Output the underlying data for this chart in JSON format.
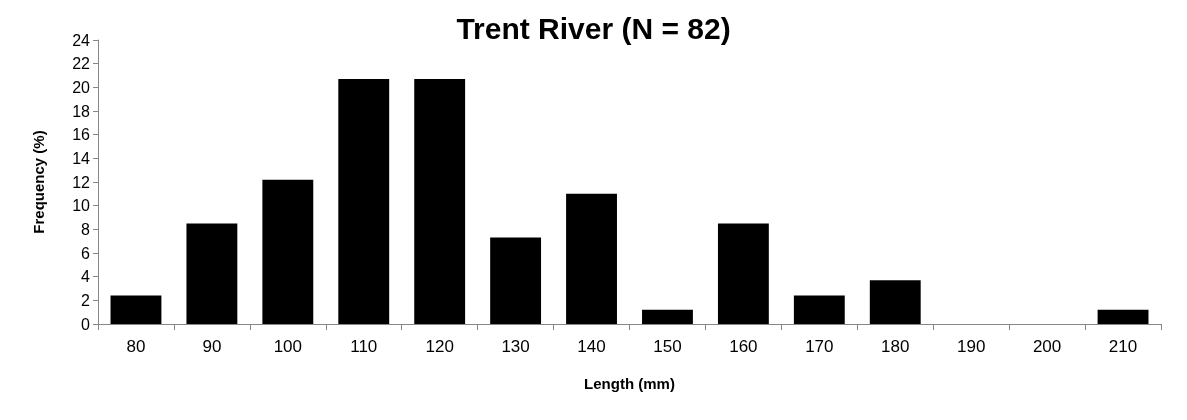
{
  "chart_data": {
    "type": "bar",
    "title": "Trent River (N = 82)",
    "xlabel": "Length (mm)",
    "ylabel": "Frequency (%)",
    "categories": [
      "80",
      "90",
      "100",
      "110",
      "120",
      "130",
      "140",
      "150",
      "160",
      "170",
      "180",
      "190",
      "200",
      "210"
    ],
    "values": [
      2.4,
      8.5,
      12.2,
      20.7,
      20.7,
      7.3,
      11.0,
      1.2,
      8.5,
      2.4,
      3.7,
      0,
      0,
      1.2
    ],
    "color": "#000000",
    "ylim": [
      0,
      24
    ],
    "yticks": [
      0,
      2,
      4,
      6,
      8,
      10,
      12,
      14,
      16,
      18,
      20,
      22,
      24
    ],
    "grid": false
  }
}
